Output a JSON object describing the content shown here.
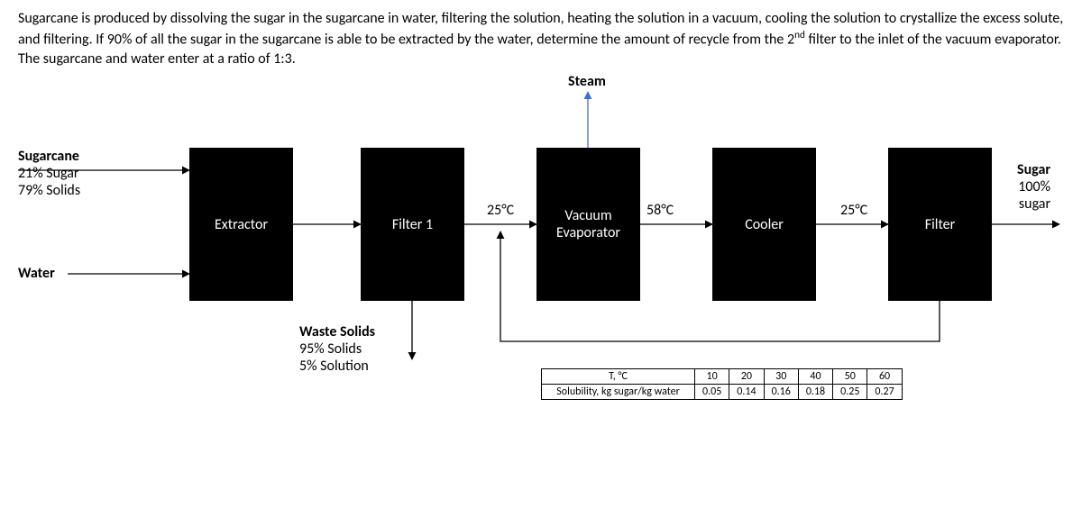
{
  "problem": {
    "text_html": "Sugarcane is produced by dissolving the sugar in the sugarcane in water, filtering the solution, heating the solution in a vacuum, cooling the solution to crystallize the excess solute, and filtering. If 90% of all the sugar in the sugarcane is able to be extracted by the water, determine the amount of recycle from the 2<sup>nd</sup> filter to the inlet of the vacuum evaporator. The sugarcane and water enter at a ratio of 1:3."
  },
  "blocks": {
    "extractor": "Extractor",
    "filter1": "Filter 1",
    "vacuum_l1": "Vacuum",
    "vacuum_l2": "Evaporator",
    "cooler": "Cooler",
    "filter2": "Filter"
  },
  "labels": {
    "sugarcane_title": "Sugarcane",
    "sugarcane_l1": "21% Sugar",
    "sugarcane_l2": "79% Solids",
    "water": "Water",
    "steam": "Steam",
    "waste_title": "Waste Solids",
    "waste_l1": "95% Solids",
    "waste_l2": "5% Solution",
    "sugar_title": "Sugar",
    "sugar_l1": "100%",
    "sugar_l2": "sugar"
  },
  "temps": {
    "t25a": "25°C",
    "t58": "58°C",
    "t25b": "25°C"
  },
  "solubility_table": {
    "row1": "T, °C",
    "row2": "Solubility, kg sugar/kg water",
    "temps": [
      "10",
      "20",
      "30",
      "40",
      "50",
      "60"
    ],
    "vals": [
      "0.05",
      "0.14",
      "0.16",
      "0.18",
      "0.25",
      "0.27"
    ]
  },
  "style": {
    "block_color": "#000000",
    "block_text_color": "#ffffff",
    "arrow_color": "#000000",
    "steam_arrow_color": "#3b6fd6",
    "background": "#ffffff"
  }
}
